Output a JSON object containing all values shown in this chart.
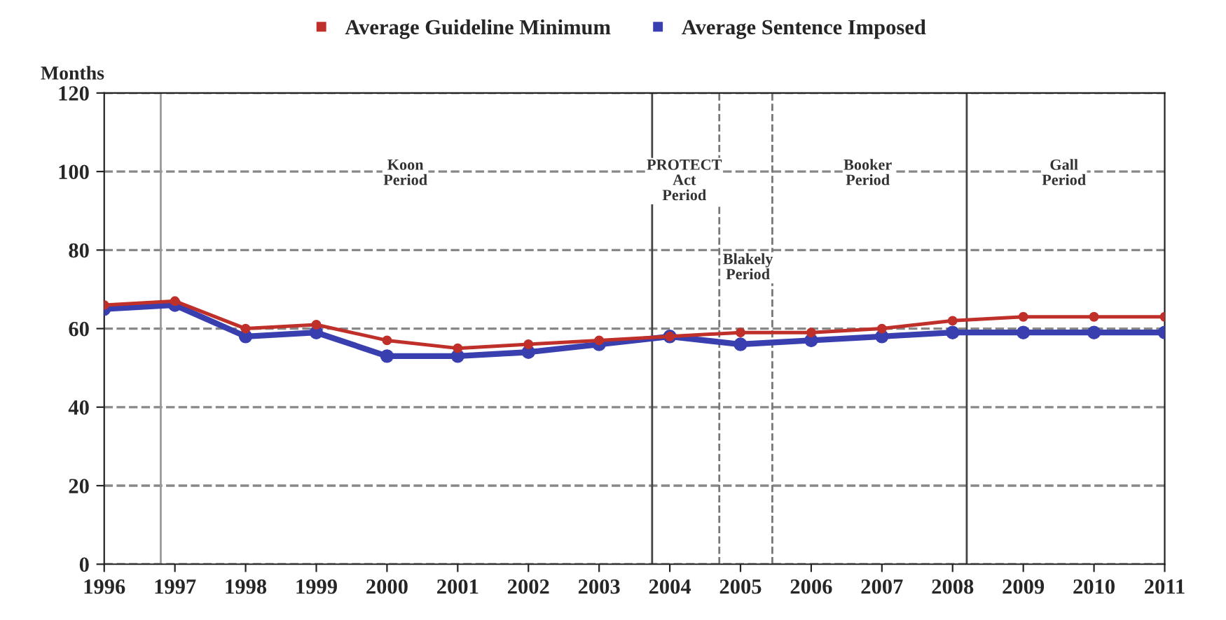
{
  "chart_data": {
    "type": "line",
    "ylabel": "Months",
    "x": [
      1996,
      1997,
      1998,
      1999,
      2000,
      2001,
      2002,
      2003,
      2004,
      2005,
      2006,
      2007,
      2008,
      2009,
      2010,
      2011
    ],
    "series": [
      {
        "name": "Average Guideline Minimum",
        "color": "#c0302a",
        "values": [
          66,
          67,
          60,
          61,
          57,
          55,
          56,
          57,
          58,
          59,
          59,
          60,
          62,
          63,
          63,
          63
        ]
      },
      {
        "name": "Average Sentence Imposed",
        "color": "#3a3fb0",
        "values": [
          65,
          66,
          58,
          59,
          53,
          53,
          54,
          56,
          58,
          56,
          57,
          58,
          59,
          59,
          59,
          59
        ]
      }
    ],
    "xlim": [
      1996,
      2011
    ],
    "xticks": [
      1996,
      1997,
      1998,
      1999,
      2000,
      2001,
      2002,
      2003,
      2004,
      2005,
      2006,
      2007,
      2008,
      2009,
      2010,
      2011
    ],
    "ylim": [
      0,
      120
    ],
    "yticks": [
      0,
      20,
      40,
      60,
      80,
      100,
      120
    ],
    "grid": "y",
    "legend": "top",
    "marker": "circle",
    "line_style": "solid",
    "ref_lines": [
      {
        "axis": "x",
        "value": 1996.8,
        "label": null,
        "color": "#999999",
        "line_style": "solid"
      },
      {
        "axis": "x",
        "value": 2003.75,
        "label": null,
        "color": "#444444",
        "line_style": "solid"
      },
      {
        "axis": "x",
        "value": 2004.7,
        "label": null,
        "color": "#777777",
        "line_style": "dashed"
      },
      {
        "axis": "x",
        "value": 2005.45,
        "label": null,
        "color": "#777777",
        "line_style": "dashed"
      },
      {
        "axis": "x",
        "value": 2008.2,
        "label": null,
        "color": "#444444",
        "line_style": "solid"
      }
    ],
    "annotations": [
      "Koon\nPeriod",
      "PROTECT\nAct\nPeriod",
      "Blakely\nPeriod",
      "Booker\nPeriod",
      "Gall\nPeriod"
    ]
  }
}
